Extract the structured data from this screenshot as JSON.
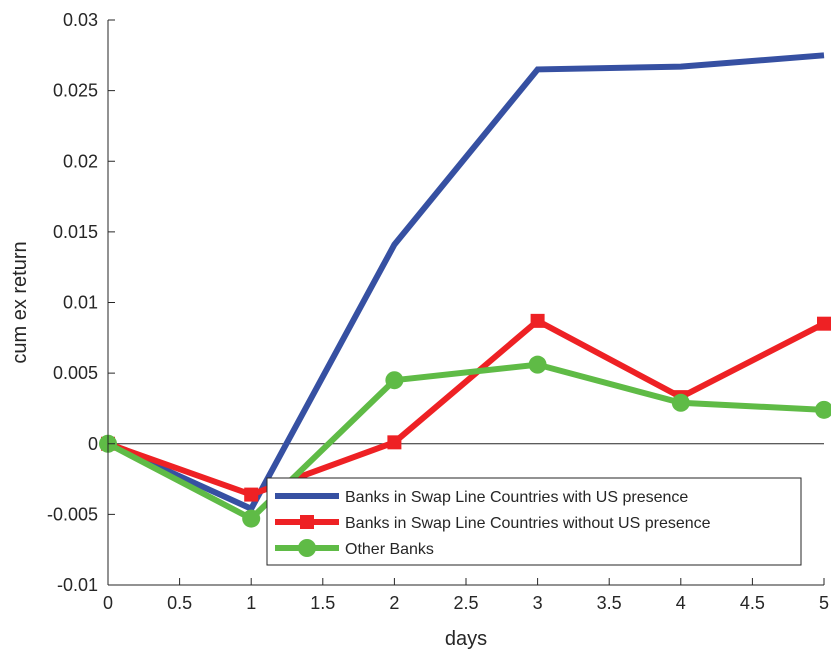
{
  "chart_data": {
    "type": "line",
    "title": "",
    "xlabel": "days",
    "ylabel": "cum ex return",
    "xlim": [
      0,
      5
    ],
    "ylim": [
      -0.01,
      0.03
    ],
    "xticks": [
      0,
      0.5,
      1,
      1.5,
      2,
      2.5,
      3,
      3.5,
      4,
      4.5,
      5
    ],
    "xtick_labels": [
      "0",
      "0.5",
      "1",
      "1.5",
      "2",
      "2.5",
      "3",
      "3.5",
      "4",
      "4.5",
      "5"
    ],
    "yticks": [
      -0.01,
      -0.005,
      0,
      0.005,
      0.01,
      0.015,
      0.02,
      0.025,
      0.03
    ],
    "ytick_labels": [
      "-0.01",
      "-0.005",
      "0",
      "0.005",
      "0.01",
      "0.015",
      "0.02",
      "0.025",
      "0.03"
    ],
    "zero_line": true,
    "grid": false,
    "legend_position": "bottom-right",
    "x": [
      0,
      1,
      2,
      3,
      4,
      5
    ],
    "series": [
      {
        "name": "Banks in Swap Line Countries with US presence",
        "values": [
          0,
          -0.0046,
          0.0141,
          0.0265,
          0.0267,
          0.0275
        ],
        "color": "#3650a2",
        "marker": "none"
      },
      {
        "name": "Banks in Swap Line Countries without US presence",
        "values": [
          0,
          -0.0036,
          0.0001,
          0.0087,
          0.0033,
          0.0085
        ],
        "color": "#ee2124",
        "marker": "square"
      },
      {
        "name": "Other Banks",
        "values": [
          0,
          -0.0053,
          0.0045,
          0.0056,
          0.0029,
          0.0024
        ],
        "color": "#5fbb46",
        "marker": "circle"
      }
    ]
  }
}
